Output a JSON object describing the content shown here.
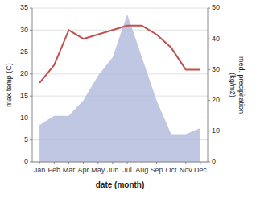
{
  "chart_data": {
    "type": "line",
    "categories": [
      "Jan",
      "Feb",
      "Mar",
      "Apr",
      "May",
      "Jun",
      "Jul",
      "Aug",
      "Sep",
      "Oct",
      "Nov",
      "Dec"
    ],
    "xlabel": "date (month)",
    "ylabel": "max temp (C)",
    "y2label": "med. precipitation\n(kg/m2)",
    "ylim": [
      0,
      35
    ],
    "yticks": [
      0,
      5,
      10,
      15,
      20,
      25,
      30,
      35
    ],
    "y2lim": [
      0,
      50
    ],
    "y2ticks": [
      0,
      10,
      20,
      30,
      40,
      50
    ],
    "grid": true,
    "series": [
      {
        "type": "area",
        "axis": "y2",
        "color": "#aab4d8",
        "values": [
          12,
          15,
          15,
          20,
          28,
          34,
          48,
          34,
          20,
          9,
          9,
          11
        ]
      },
      {
        "type": "line",
        "color": "#c0504d",
        "values": [
          18,
          22,
          30,
          28,
          29,
          30,
          31,
          31,
          29,
          26,
          21,
          21
        ]
      }
    ]
  }
}
